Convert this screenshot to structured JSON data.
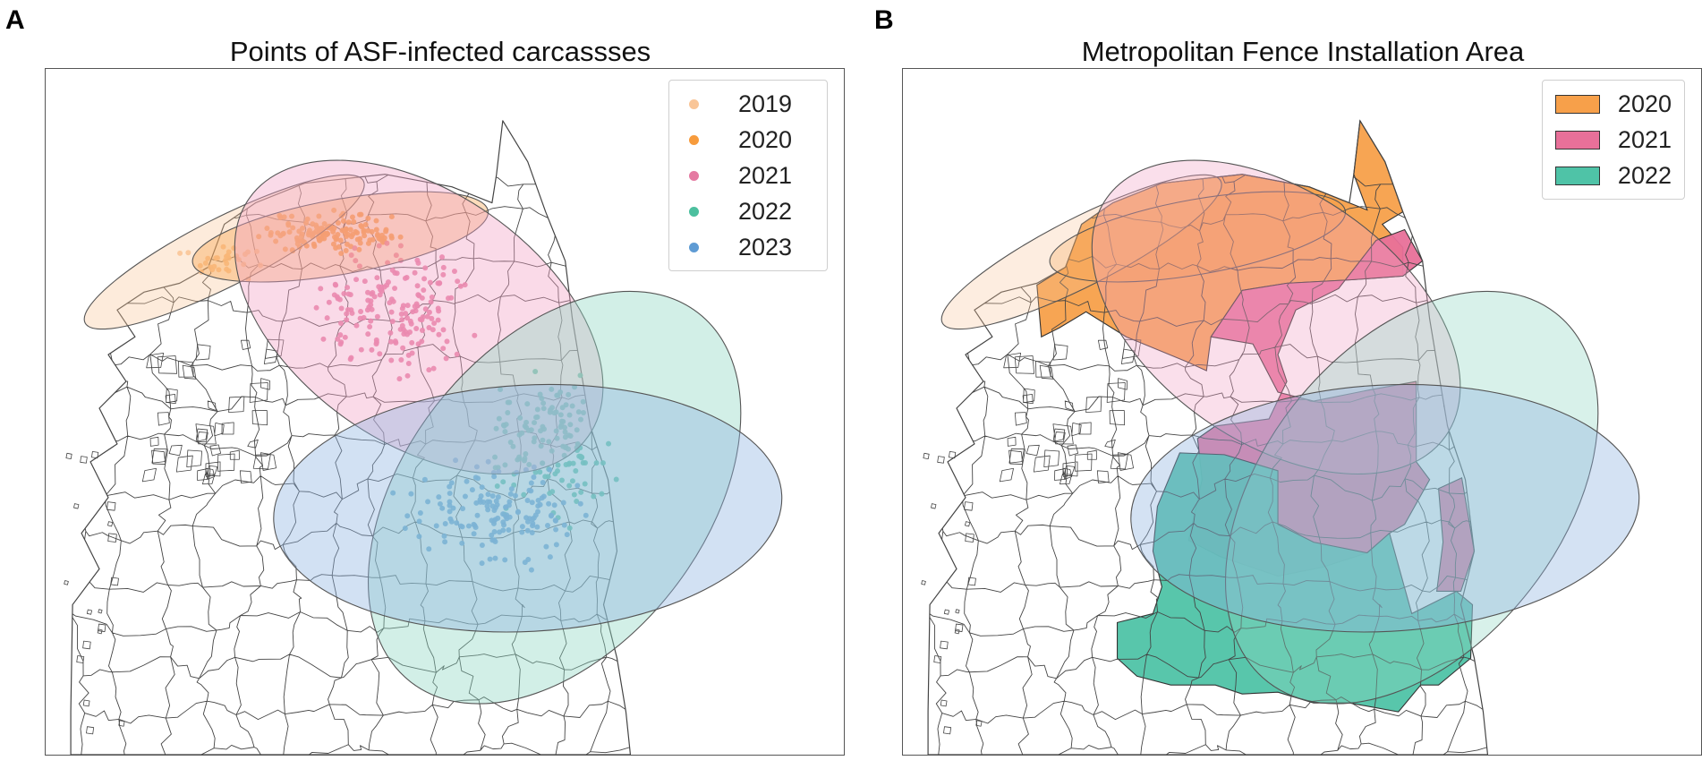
{
  "panels": [
    {
      "letter": "A",
      "title": "Points of ASF-infected carcassses",
      "legend": [
        {
          "label": "2019",
          "color": "#f9c597"
        },
        {
          "label": "2020",
          "color": "#f79b3c"
        },
        {
          "label": "2021",
          "color": "#e57aa2"
        },
        {
          "label": "2022",
          "color": "#4cbf9e"
        },
        {
          "label": "2023",
          "color": "#5e9bd4"
        }
      ]
    },
    {
      "letter": "B",
      "title": "Metropolitan Fence Installation Area",
      "legend": [
        {
          "label": "2020",
          "color": "#f7a04a"
        },
        {
          "label": "2021",
          "color": "#e87099"
        },
        {
          "label": "2022",
          "color": "#4fc3a7"
        }
      ]
    }
  ],
  "colors": {
    "ellipse_2019": "#f9c597",
    "ellipse_2020": "#f79b3c",
    "ellipse_2021": "#f2a2c6",
    "ellipse_2022": "#8fd8c2",
    "ellipse_2023": "#8fb3e0",
    "boundary": "#444444",
    "fence_2020": "#f7a04a",
    "fence_2021": "#e87099",
    "fence_2022": "#4fc3a7"
  }
}
